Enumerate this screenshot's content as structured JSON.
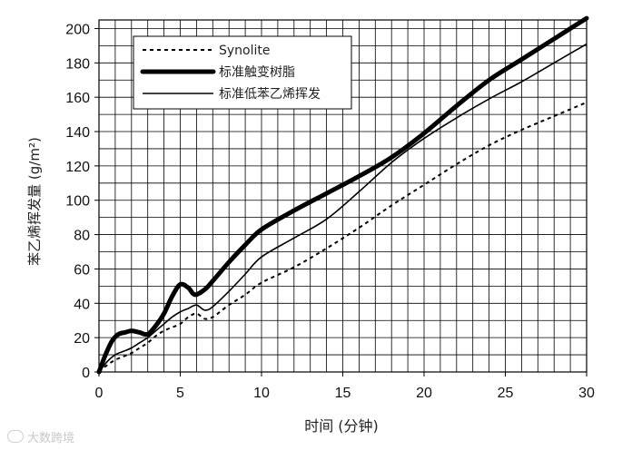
{
  "chart_data": {
    "type": "line",
    "xlabel": "时间 (分钟)",
    "ylabel": "苯乙烯挥发量 (g/m²)",
    "xlim": [
      0,
      30
    ],
    "ylim": [
      0,
      205
    ],
    "xticks": [
      0,
      5,
      10,
      15,
      20,
      25,
      30
    ],
    "yticks": [
      0,
      20,
      40,
      60,
      80,
      100,
      120,
      140,
      160,
      180,
      200
    ],
    "grid": "horizontal every 10, vertical every 1",
    "legend_position": "top-left",
    "series": [
      {
        "name": "Synolite",
        "style": "dashed",
        "points": [
          [
            0,
            0
          ],
          [
            0.5,
            4
          ],
          [
            1,
            7
          ],
          [
            1.5,
            9
          ],
          [
            2,
            11
          ],
          [
            2.5,
            14
          ],
          [
            3,
            17
          ],
          [
            3.5,
            21
          ],
          [
            4,
            24
          ],
          [
            4.5,
            26
          ],
          [
            5,
            28
          ],
          [
            5.5,
            32
          ],
          [
            6,
            34
          ],
          [
            6.5,
            31
          ],
          [
            7,
            32
          ],
          [
            8,
            39
          ],
          [
            9,
            45
          ],
          [
            10,
            52
          ],
          [
            12,
            61
          ],
          [
            14,
            72
          ],
          [
            16,
            84
          ],
          [
            18,
            97
          ],
          [
            20,
            109
          ],
          [
            22,
            121
          ],
          [
            24,
            132
          ],
          [
            26,
            141
          ],
          [
            28,
            149
          ],
          [
            30,
            157
          ]
        ]
      },
      {
        "name": "标准触变树脂",
        "style": "thick",
        "points": [
          [
            0,
            0
          ],
          [
            0.4,
            10
          ],
          [
            0.8,
            18
          ],
          [
            1.2,
            22
          ],
          [
            1.6,
            23
          ],
          [
            2,
            24
          ],
          [
            2.5,
            23
          ],
          [
            3,
            22
          ],
          [
            3.5,
            27
          ],
          [
            4,
            34
          ],
          [
            4.5,
            44
          ],
          [
            5,
            51
          ],
          [
            5.5,
            49
          ],
          [
            5.9,
            45
          ],
          [
            6.5,
            48
          ],
          [
            7,
            53
          ],
          [
            8,
            64
          ],
          [
            9,
            74
          ],
          [
            10,
            83
          ],
          [
            12,
            94
          ],
          [
            14,
            104
          ],
          [
            16,
            114
          ],
          [
            18,
            125
          ],
          [
            20,
            139
          ],
          [
            22,
            155
          ],
          [
            24,
            170
          ],
          [
            26,
            182
          ],
          [
            28,
            194
          ],
          [
            30,
            206
          ]
        ]
      },
      {
        "name": "标准低苯乙烯挥发",
        "style": "thin",
        "points": [
          [
            0,
            0
          ],
          [
            0.5,
            6
          ],
          [
            1,
            10
          ],
          [
            1.5,
            12
          ],
          [
            2,
            14
          ],
          [
            2.5,
            17
          ],
          [
            3,
            20
          ],
          [
            3.5,
            24
          ],
          [
            4,
            28
          ],
          [
            4.5,
            32
          ],
          [
            5,
            35
          ],
          [
            5.5,
            37
          ],
          [
            6,
            39
          ],
          [
            6.5,
            36
          ],
          [
            7,
            38
          ],
          [
            8,
            47
          ],
          [
            9,
            57
          ],
          [
            10,
            67
          ],
          [
            12,
            78
          ],
          [
            14,
            89
          ],
          [
            16,
            105
          ],
          [
            18,
            122
          ],
          [
            20,
            136
          ],
          [
            22,
            148
          ],
          [
            24,
            159
          ],
          [
            26,
            169
          ],
          [
            28,
            180
          ],
          [
            30,
            191
          ]
        ]
      }
    ]
  },
  "watermark": "大数跨境"
}
